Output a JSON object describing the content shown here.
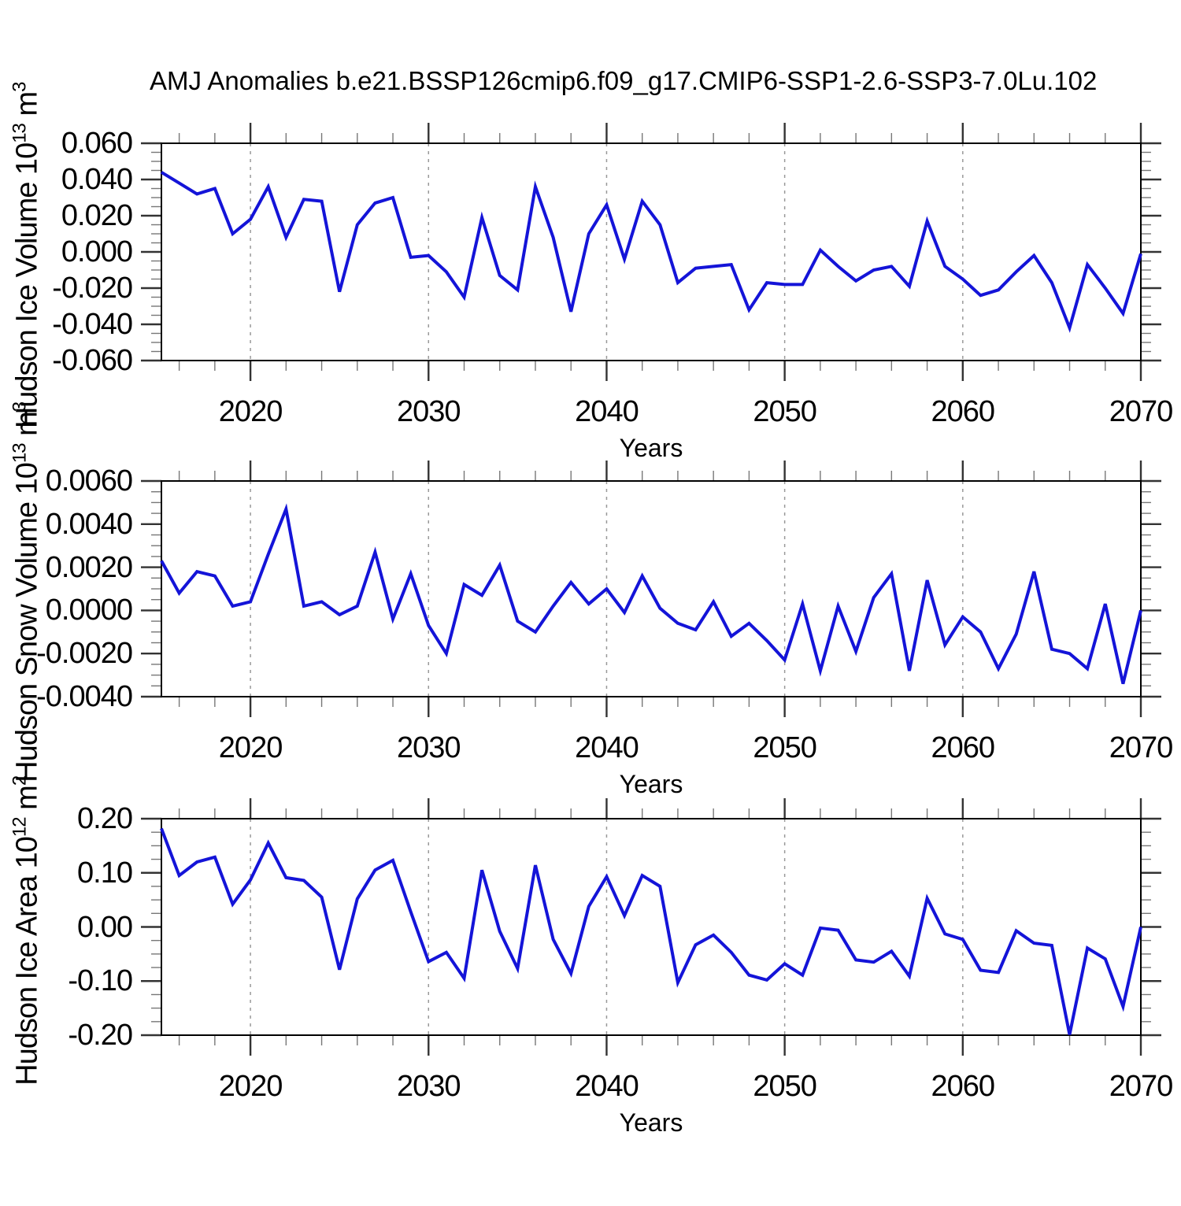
{
  "title": "AMJ Anomalies b.e21.BSSP126cmip6.f09_g17.CMIP6-SSP1-2.6-SSP3-7.0Lu.102",
  "line_color": "#1414D8",
  "grid_color": "#999999",
  "frame_color": "#000000",
  "major_tick_color": "#333333",
  "minor_tick_color": "#777777",
  "chart_data": {
    "type": "line",
    "x_label": "Years",
    "x": [
      2015,
      2016,
      2017,
      2018,
      2019,
      2020,
      2021,
      2022,
      2023,
      2024,
      2025,
      2026,
      2027,
      2028,
      2029,
      2030,
      2031,
      2032,
      2033,
      2034,
      2035,
      2036,
      2037,
      2038,
      2039,
      2040,
      2041,
      2042,
      2043,
      2044,
      2045,
      2046,
      2047,
      2048,
      2049,
      2050,
      2051,
      2052,
      2053,
      2054,
      2055,
      2056,
      2057,
      2058,
      2059,
      2060,
      2061,
      2062,
      2063,
      2064,
      2065,
      2066,
      2067,
      2068,
      2069,
      2070
    ],
    "x_ticks": {
      "minor_step": 2,
      "major_step": 10,
      "label_values": [
        2020,
        2030,
        2040,
        2050,
        2060,
        2070
      ],
      "labels": [
        "2020",
        "2030",
        "2040",
        "2050",
        "2060",
        "2070"
      ],
      "grid_values": [
        2020,
        2030,
        2040,
        2050,
        2060
      ]
    },
    "charts": [
      {
        "id": "ice-volume",
        "ylabel": {
          "base1": "Hudson Ice Volume 10",
          "exp1": "13",
          "base2": " m",
          "exp2": "3"
        },
        "ylim": [
          -0.06,
          0.06
        ],
        "ytick_minor": 0.005,
        "ytick_values": [
          0.06,
          0.04,
          0.02,
          0,
          -0.02,
          -0.04,
          -0.06
        ],
        "ytick_labels": [
          "0.060",
          "0.040",
          "0.020",
          "0.000",
          "-0.020",
          "-0.040",
          "-0.060"
        ],
        "values": [
          0.044,
          0.038,
          0.032,
          0.035,
          0.01,
          0.018,
          0.036,
          0.008,
          0.029,
          0.028,
          -0.022,
          0.015,
          0.027,
          0.03,
          -0.003,
          -0.002,
          -0.011,
          -0.025,
          0.019,
          -0.013,
          -0.021,
          0.036,
          0.008,
          -0.033,
          0.01,
          0.026,
          -0.004,
          0.028,
          0.015,
          -0.017,
          -0.009,
          -0.008,
          -0.007,
          -0.032,
          -0.017,
          -0.018,
          -0.018,
          0.001,
          -0.008,
          -0.016,
          -0.01,
          -0.008,
          -0.019,
          0.017,
          -0.008,
          -0.015,
          -0.024,
          -0.021,
          -0.011,
          -0.002,
          -0.017,
          -0.042,
          -0.007,
          -0.02,
          -0.034,
          -0.001
        ]
      },
      {
        "id": "snow-volume",
        "ylabel": {
          "base1": "Hudson Snow Volume 10",
          "exp1": "13",
          "base2": " m",
          "exp2": "3"
        },
        "ylim": [
          -0.004,
          0.006
        ],
        "ytick_minor": 0.0005,
        "ytick_values": [
          0.006,
          0.004,
          0.002,
          0,
          -0.002,
          -0.004
        ],
        "ytick_labels": [
          "0.0060",
          "0.0040",
          "0.0020",
          "0.0000",
          "-0.0020",
          "-0.0040"
        ],
        "values": [
          0.0023,
          0.0008,
          0.0018,
          0.0016,
          0.0002,
          0.0004,
          0.0026,
          0.0047,
          0.0002,
          0.0004,
          -0.0002,
          0.0002,
          0.0027,
          -0.0004,
          0.0017,
          -0.0007,
          -0.002,
          0.0012,
          0.0007,
          0.0021,
          -0.0005,
          -0.001,
          0.0002,
          0.0013,
          0.0003,
          0.001,
          -0.0001,
          0.0016,
          0.0001,
          -0.0006,
          -0.0009,
          0.0004,
          -0.0012,
          -0.0006,
          -0.0014,
          -0.0023,
          0.0003,
          -0.0028,
          0.0002,
          -0.0019,
          0.0006,
          0.0017,
          -0.0028,
          0.0014,
          -0.0016,
          -0.0003,
          -0.001,
          -0.0027,
          -0.0011,
          0.0018,
          -0.0018,
          -0.002,
          -0.0027,
          0.0003,
          -0.0034,
          0.0
        ]
      },
      {
        "id": "ice-area",
        "ylabel": {
          "base1": "Hudson Ice Area 10",
          "exp1": "12",
          "base2": " m",
          "exp2": "2"
        },
        "ylim": [
          -0.2,
          0.2
        ],
        "ytick_minor": 0.025,
        "ytick_values": [
          0.2,
          0.1,
          0,
          -0.1,
          -0.2
        ],
        "ytick_labels": [
          "0.20",
          "0.10",
          "0.00",
          "-0.10",
          "-0.20"
        ],
        "values": [
          0.182,
          0.095,
          0.12,
          0.129,
          0.042,
          0.087,
          0.155,
          0.091,
          0.086,
          0.055,
          -0.079,
          0.052,
          0.105,
          0.123,
          0.028,
          -0.064,
          -0.047,
          -0.095,
          0.105,
          -0.008,
          -0.077,
          0.114,
          -0.023,
          -0.086,
          0.038,
          0.093,
          0.021,
          0.095,
          0.075,
          -0.103,
          -0.033,
          -0.015,
          -0.047,
          -0.089,
          -0.098,
          -0.068,
          -0.089,
          -0.002,
          -0.006,
          -0.061,
          -0.065,
          -0.045,
          -0.091,
          0.053,
          -0.013,
          -0.023,
          -0.08,
          -0.084,
          -0.007,
          -0.03,
          -0.034,
          -0.199,
          -0.039,
          -0.059,
          -0.147,
          0.0
        ]
      }
    ]
  }
}
